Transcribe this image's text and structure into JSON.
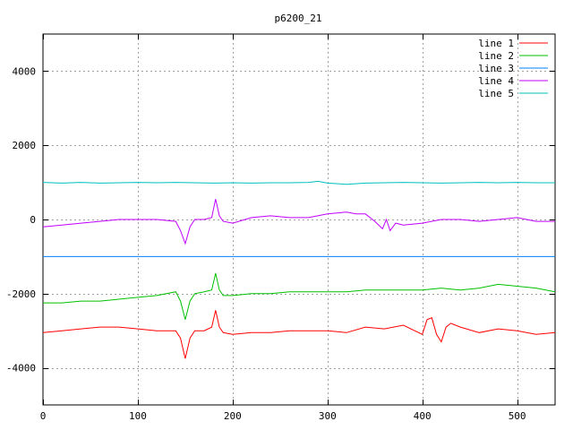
{
  "chart_data": {
    "type": "line",
    "title": "p6200_21",
    "xlabel": "",
    "ylabel": "",
    "xlim": [
      0,
      540
    ],
    "ylim": [
      -5000,
      5000
    ],
    "x_ticks": [
      0,
      100,
      200,
      300,
      400,
      500
    ],
    "y_ticks": [
      -4000,
      -2000,
      0,
      2000,
      4000
    ],
    "grid": true,
    "legend_position": "top-right",
    "series": [
      {
        "name": "line 1",
        "color": "#ff0000",
        "x": [
          0,
          20,
          40,
          60,
          80,
          100,
          120,
          140,
          145,
          150,
          155,
          160,
          170,
          178,
          182,
          186,
          190,
          200,
          220,
          240,
          260,
          280,
          300,
          320,
          340,
          360,
          380,
          400,
          405,
          410,
          415,
          420,
          425,
          430,
          440,
          460,
          480,
          500,
          520,
          540
        ],
        "y": [
          -3050,
          -3000,
          -2950,
          -2900,
          -2900,
          -2950,
          -3000,
          -3000,
          -3200,
          -3750,
          -3200,
          -3000,
          -3000,
          -2900,
          -2450,
          -2900,
          -3050,
          -3100,
          -3050,
          -3050,
          -3000,
          -3000,
          -3000,
          -3050,
          -2900,
          -2950,
          -2850,
          -3100,
          -2700,
          -2650,
          -3100,
          -3300,
          -2900,
          -2800,
          -2900,
          -3050,
          -2950,
          -3000,
          -3100,
          -3050
        ]
      },
      {
        "name": "line 2",
        "color": "#00c000",
        "x": [
          0,
          20,
          40,
          60,
          80,
          100,
          120,
          140,
          145,
          150,
          155,
          160,
          170,
          178,
          182,
          186,
          190,
          200,
          220,
          240,
          260,
          280,
          300,
          320,
          340,
          360,
          380,
          400,
          420,
          440,
          460,
          480,
          500,
          520,
          540
        ],
        "y": [
          -2250,
          -2250,
          -2200,
          -2200,
          -2150,
          -2100,
          -2050,
          -1950,
          -2200,
          -2700,
          -2200,
          -2000,
          -1950,
          -1900,
          -1450,
          -1900,
          -2050,
          -2050,
          -2000,
          -2000,
          -1950,
          -1950,
          -1950,
          -1950,
          -1900,
          -1900,
          -1900,
          -1900,
          -1850,
          -1900,
          -1850,
          -1750,
          -1800,
          -1850,
          -1950
        ]
      },
      {
        "name": "line 3",
        "color": "#0080ff",
        "x": [
          0,
          540
        ],
        "y": [
          -1000,
          -1000
        ]
      },
      {
        "name": "line 4",
        "color": "#c000ff",
        "x": [
          0,
          20,
          40,
          60,
          80,
          100,
          120,
          140,
          145,
          150,
          155,
          160,
          170,
          178,
          182,
          186,
          190,
          200,
          220,
          240,
          260,
          280,
          300,
          320,
          330,
          340,
          350,
          358,
          362,
          366,
          372,
          380,
          400,
          420,
          440,
          460,
          480,
          500,
          520,
          540
        ],
        "y": [
          -200,
          -150,
          -100,
          -50,
          0,
          0,
          0,
          -50,
          -300,
          -650,
          -200,
          0,
          0,
          50,
          550,
          100,
          -50,
          -100,
          50,
          100,
          50,
          50,
          150,
          200,
          150,
          150,
          -50,
          -250,
          0,
          -300,
          -100,
          -150,
          -100,
          0,
          0,
          -50,
          0,
          50,
          -50,
          -50
        ]
      },
      {
        "name": "line 5",
        "color": "#00c0c0",
        "x": [
          0,
          20,
          40,
          60,
          80,
          100,
          120,
          140,
          160,
          180,
          200,
          220,
          240,
          260,
          280,
          290,
          300,
          320,
          340,
          360,
          380,
          400,
          420,
          440,
          460,
          480,
          500,
          520,
          540
        ],
        "y": [
          1000,
          980,
          1000,
          980,
          990,
          1000,
          990,
          1000,
          990,
          980,
          990,
          980,
          990,
          990,
          1000,
          1030,
          980,
          950,
          980,
          990,
          1000,
          990,
          980,
          990,
          1000,
          990,
          1000,
          990,
          990
        ]
      }
    ]
  }
}
